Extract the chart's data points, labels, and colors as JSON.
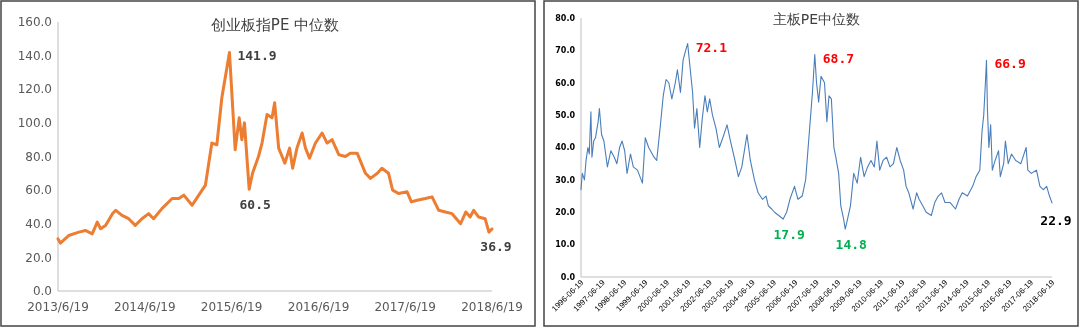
{
  "chart_data": [
    {
      "type": "line",
      "title": "创业板指PE 中位数",
      "color": "#ed7d31",
      "x": [
        "2013-06-19",
        "2013-06-29",
        "2013-08-03",
        "2013-09-15",
        "2013-10-12",
        "2013-11-10",
        "2013-12-01",
        "2013-12-15",
        "2014-01-05",
        "2014-02-03",
        "2014-02-17",
        "2014-03-15",
        "2014-04-12",
        "2014-05-10",
        "2014-06-07",
        "2014-07-05",
        "2014-07-26",
        "2014-08-30",
        "2014-10-12",
        "2014-11-09",
        "2014-11-30",
        "2015-01-04",
        "2015-02-01",
        "2015-03-01",
        "2015-03-28",
        "2015-04-18",
        "2015-05-09",
        "2015-06-10",
        "2015-07-04",
        "2015-07-21",
        "2015-08-01",
        "2015-08-12",
        "2015-09-01",
        "2015-09-15",
        "2015-10-10",
        "2015-10-25",
        "2015-11-15",
        "2015-12-06",
        "2015-12-17",
        "2016-01-03",
        "2016-01-29",
        "2016-02-18",
        "2016-03-02",
        "2016-03-20",
        "2016-04-11",
        "2016-04-25",
        "2016-05-12",
        "2016-06-06",
        "2016-07-04",
        "2016-07-25",
        "2016-08-15",
        "2016-09-13",
        "2016-10-10",
        "2016-10-31",
        "2016-11-29",
        "2017-01-03",
        "2017-01-24",
        "2017-02-22",
        "2017-03-13",
        "2017-04-10",
        "2017-04-27",
        "2017-05-22",
        "2017-06-27",
        "2017-07-15",
        "2017-08-08",
        "2017-09-12",
        "2017-10-10",
        "2017-11-07",
        "2017-12-05",
        "2018-01-02",
        "2018-02-07",
        "2018-03-01",
        "2018-03-19",
        "2018-04-03",
        "2018-04-24",
        "2018-05-21",
        "2018-06-06",
        "2018-06-19"
      ],
      "values": [
        31,
        28.5,
        33,
        35,
        36,
        34,
        41,
        37,
        39,
        46,
        48,
        45,
        43,
        39,
        43,
        46,
        43,
        49,
        55,
        55,
        57,
        51,
        57,
        63,
        88,
        87,
        115,
        141.9,
        84,
        103,
        90,
        100,
        60.5,
        70,
        80,
        88,
        105,
        103,
        112,
        85,
        76,
        85,
        73,
        85,
        94,
        85,
        79,
        88,
        94,
        88,
        90,
        81,
        80,
        82,
        82,
        70,
        67,
        70,
        73,
        70,
        60,
        58,
        59,
        53,
        54,
        55,
        56,
        48,
        47,
        46,
        40,
        47,
        44,
        48,
        44,
        43,
        35,
        36.9
      ],
      "xlim": [
        "2013-06-19",
        "2018-06-19"
      ],
      "xticks": [
        {
          "value": "2013-06-19",
          "label": "2013/6/19"
        },
        {
          "value": "2014-06-19",
          "label": "2014/6/19"
        },
        {
          "value": "2015-06-19",
          "label": "2015/6/19"
        },
        {
          "value": "2016-06-19",
          "label": "2016/6/19"
        },
        {
          "value": "2017-06-19",
          "label": "2017/6/19"
        },
        {
          "value": "2018-06-19",
          "label": "2018/6/19"
        }
      ],
      "ylim": [
        0,
        160
      ],
      "yticks": [
        {
          "value": 0,
          "label": "0.0"
        },
        {
          "value": 20,
          "label": "20.0"
        },
        {
          "value": 40,
          "label": "40.0"
        },
        {
          "value": 60,
          "label": "60.0"
        },
        {
          "value": 80,
          "label": "80.0"
        },
        {
          "value": 100,
          "label": "100.0"
        },
        {
          "value": 120,
          "label": "120.0"
        },
        {
          "value": 140,
          "label": "140.0"
        },
        {
          "value": 160,
          "label": "160.0"
        }
      ],
      "annotations": [
        {
          "text": "141.9",
          "x": "2015-06-10",
          "y": 141.9
        },
        {
          "text": "60.5",
          "x": "2015-09-01",
          "y": 60.5
        },
        {
          "text": "36.9",
          "x": "2018-06-19",
          "y": 36.9
        }
      ]
    },
    {
      "type": "line",
      "title": "主板PE中位数",
      "color": "#4a7ebb",
      "x": [
        "1996-06-19",
        "1996-07-11",
        "1996-08-17",
        "1996-09-13",
        "1996-10-15",
        "1996-11-07",
        "1996-12-05",
        "1996-12-23",
        "1997-01-22",
        "1997-02-21",
        "1997-04-08",
        "1997-04-29",
        "1997-06-05",
        "1997-07-15",
        "1997-09-13",
        "1997-11-10",
        "1998-01-08",
        "1998-02-21",
        "1998-04-08",
        "1998-05-21",
        "1998-07-04",
        "1998-08-14",
        "1998-10-11",
        "1998-11-28",
        "1999-02-07",
        "1999-05-03",
        "1999-06-20",
        "1999-08-17",
        "1999-11-17",
        "2000-01-01",
        "2000-02-28",
        "2000-04-22",
        "2000-06-09",
        "2000-07-26",
        "2000-09-16",
        "2000-11-14",
        "2000-12-20",
        "2001-02-10",
        "2001-03-27",
        "2001-05-10",
        "2001-06-13",
        "2001-07-22",
        "2001-09-05",
        "2001-10-08",
        "2001-11-17",
        "2002-01-04",
        "2002-02-17",
        "2002-04-04",
        "2002-05-14",
        "2002-06-23",
        "2002-08-10",
        "2002-10-08",
        "2002-12-05",
        "2003-02-03",
        "2003-04-15",
        "2003-06-13",
        "2003-08-28",
        "2003-10-26",
        "2003-12-23",
        "2004-03-20",
        "2004-05-17",
        "2004-07-26",
        "2004-09-27",
        "2004-12-09",
        "2005-02-10",
        "2005-03-20",
        "2005-05-17",
        "2005-07-04",
        "2005-09-13",
        "2005-11-28",
        "2006-01-26",
        "2006-03-23",
        "2006-06-09",
        "2006-08-07",
        "2006-10-19",
        "2006-12-16",
        "2007-02-14",
        "2007-04-11",
        "2007-05-21",
        "2007-06-20",
        "2007-07-26",
        "2007-09-05",
        "2007-11-03",
        "2007-12-13",
        "2008-01-19",
        "2008-02-28",
        "2008-04-11",
        "2008-05-14",
        "2008-07-01",
        "2008-08-07",
        "2008-09-23",
        "2008-10-22",
        "2008-12-02",
        "2009-01-19",
        "2009-03-16",
        "2009-05-14",
        "2009-07-11",
        "2009-09-09",
        "2009-11-07",
        "2010-01-04",
        "2010-03-02",
        "2010-04-15",
        "2010-06-02",
        "2010-07-29",
        "2010-09-27",
        "2010-11-25",
        "2011-01-22",
        "2011-03-20",
        "2011-05-17",
        "2011-07-15",
        "2011-08-25",
        "2011-10-11",
        "2011-12-23",
        "2012-02-21",
        "2012-04-04",
        "2012-06-05",
        "2012-08-03",
        "2012-10-29",
        "2012-12-27",
        "2013-02-25",
        "2013-04-22",
        "2013-06-20",
        "2013-09-16",
        "2013-12-16",
        "2014-02-14",
        "2014-04-11",
        "2014-07-08",
        "2014-10-04",
        "2014-12-02",
        "2015-02-03",
        "2015-03-13",
        "2015-04-11",
        "2015-05-10",
        "2015-05-28",
        "2015-06-13",
        "2015-07-08",
        "2015-08-07",
        "2015-09-05",
        "2015-10-22",
        "2015-12-20",
        "2016-01-19",
        "2016-03-16",
        "2016-04-15",
        "2016-06-02",
        "2016-07-29",
        "2016-10-08",
        "2017-01-04",
        "2017-04-04",
        "2017-05-03",
        "2017-07-01",
        "2017-09-27",
        "2017-11-25",
        "2018-01-22",
        "2018-03-20",
        "2018-05-07",
        "2018-06-19"
      ],
      "values": [
        27,
        32,
        30,
        36,
        40,
        38,
        51,
        37,
        42,
        43,
        48,
        52,
        44,
        42,
        34,
        39,
        37,
        35,
        40,
        42,
        39,
        32,
        38,
        34,
        33,
        29,
        43,
        40,
        37,
        36,
        46,
        56,
        61,
        60,
        55,
        60,
        64,
        57,
        67,
        70,
        72.1,
        65,
        57,
        46,
        52,
        40,
        49,
        56,
        51,
        55,
        50,
        46,
        40,
        43,
        47,
        42,
        36,
        31,
        34,
        44,
        36,
        30,
        26,
        24,
        25,
        22,
        21,
        20,
        19,
        17.9,
        20,
        24,
        28,
        24,
        25,
        30,
        44,
        57,
        68.7,
        60,
        54,
        62,
        60,
        48,
        56,
        55,
        40,
        37,
        32,
        22,
        18,
        14.8,
        18,
        22,
        32,
        29,
        37,
        31,
        34,
        36,
        34,
        42,
        33,
        36,
        37,
        34,
        35,
        40,
        36,
        33,
        28,
        26,
        21,
        26,
        24,
        22,
        20,
        19,
        23,
        25,
        26,
        23,
        23,
        21,
        24,
        26,
        25,
        28,
        31,
        33,
        45,
        50,
        60,
        66.9,
        52,
        40,
        47,
        33,
        36,
        39,
        31,
        35,
        42,
        35,
        38,
        36,
        35,
        40,
        33,
        32,
        33,
        28,
        27,
        28,
        25,
        22.9
      ],
      "xlim": [
        "1996-06-19",
        "2018-06-19"
      ],
      "xticks": [
        {
          "value": "1996-06-19",
          "label": "1996-06-19"
        },
        {
          "value": "1997-06-19",
          "label": "1997-06-19"
        },
        {
          "value": "1998-06-19",
          "label": "1998-06-19"
        },
        {
          "value": "1999-06-19",
          "label": "1999-06-19"
        },
        {
          "value": "2000-06-19",
          "label": "2000-06-19"
        },
        {
          "value": "2001-06-19",
          "label": "2001-06-19"
        },
        {
          "value": "2002-06-19",
          "label": "2002-06-19"
        },
        {
          "value": "2003-06-19",
          "label": "2003-06-19"
        },
        {
          "value": "2004-06-19",
          "label": "2004-06-19"
        },
        {
          "value": "2005-06-19",
          "label": "2005-06-19"
        },
        {
          "value": "2006-06-19",
          "label": "2006-06-19"
        },
        {
          "value": "2007-06-19",
          "label": "2007-06-19"
        },
        {
          "value": "2008-06-19",
          "label": "2008-06-19"
        },
        {
          "value": "2009-06-19",
          "label": "2009-06-19"
        },
        {
          "value": "2010-06-19",
          "label": "2010-06-19"
        },
        {
          "value": "2011-06-19",
          "label": "2011-06-19"
        },
        {
          "value": "2012-06-19",
          "label": "2012-06-19"
        },
        {
          "value": "2013-06-19",
          "label": "2013-06-19"
        },
        {
          "value": "2014-06-19",
          "label": "2014-06-19"
        },
        {
          "value": "2015-06-19",
          "label": "2015-06-19"
        },
        {
          "value": "2016-06-19",
          "label": "2016-06-19"
        },
        {
          "value": "2017-06-19",
          "label": "2017-06-19"
        },
        {
          "value": "2018-06-19",
          "label": "2018-06-19"
        }
      ],
      "ylim": [
        0,
        80
      ],
      "yticks": [
        {
          "value": 0,
          "label": "0.0"
        },
        {
          "value": 10,
          "label": "10.0"
        },
        {
          "value": 20,
          "label": "20.0"
        },
        {
          "value": 30,
          "label": "30.0"
        },
        {
          "value": 40,
          "label": "40.0"
        },
        {
          "value": 50,
          "label": "50.0"
        },
        {
          "value": 60,
          "label": "60.0"
        },
        {
          "value": 70,
          "label": "70.0"
        },
        {
          "value": 80,
          "label": "80.0"
        }
      ],
      "annotations": [
        {
          "text": "72.1",
          "x": "2001-06-13",
          "y": 72.1
        },
        {
          "text": "17.9",
          "x": "2005-11-28",
          "y": 17.9
        },
        {
          "text": "68.7",
          "x": "2007-05-21",
          "y": 68.7
        },
        {
          "text": "14.8",
          "x": "2008-10-22",
          "y": 14.8
        },
        {
          "text": "66.9",
          "x": "2015-05-28",
          "y": 66.9
        },
        {
          "text": "22.9",
          "x": "2018-06-19",
          "y": 22.9
        }
      ]
    }
  ]
}
